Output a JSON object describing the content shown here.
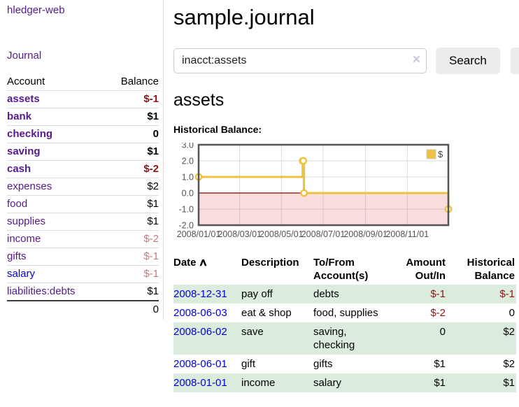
{
  "app_title": "hledger-web",
  "sidebar": {
    "journal_link": "Journal",
    "account_header": "Account",
    "balance_header": "Balance",
    "accounts": [
      {
        "name": "assets",
        "balance": "$-1",
        "depth": 0
      },
      {
        "name": "bank",
        "balance": "$1",
        "depth": 1
      },
      {
        "name": "checking",
        "balance": "0",
        "depth": 2
      },
      {
        "name": "saving",
        "balance": "$1",
        "depth": 2
      },
      {
        "name": "cash",
        "balance": "$-2",
        "depth": 1
      },
      {
        "name": "expenses",
        "balance": "$2",
        "depth": 0
      },
      {
        "name": "food",
        "balance": "$1",
        "depth": 1
      },
      {
        "name": "supplies",
        "balance": "$1",
        "depth": 1
      },
      {
        "name": "income",
        "balance": "$-2",
        "depth": 0
      },
      {
        "name": "gifts",
        "balance": "$-1",
        "depth": 1
      },
      {
        "name": "salary",
        "balance": "$-1",
        "depth": 1
      },
      {
        "name": "liabilities:debts",
        "balance": "$1",
        "depth": 0
      }
    ],
    "total": "0"
  },
  "header": {
    "title": "sample.journal"
  },
  "search": {
    "value": "inacct:assets",
    "clear_icon": "×",
    "search_button": "Search",
    "help_button": "?"
  },
  "account_page": {
    "heading": "assets",
    "chart_title": "Historical Balance:"
  },
  "chart_data": {
    "type": "line",
    "step": true,
    "title": "Historical Balance",
    "series": [
      {
        "name": "$",
        "color": "#edc240",
        "points": [
          [
            "2008-01-01",
            1
          ],
          [
            "2008-06-01",
            2
          ],
          [
            "2008-06-02",
            2
          ],
          [
            "2008-06-03",
            0
          ],
          [
            "2008-12-31",
            -1
          ]
        ]
      }
    ],
    "x_range": [
      "2008-01-01",
      "2008-12-31"
    ],
    "x_ticks": [
      "2008/01/01",
      "2008/03/01",
      "2008/05/01",
      "2008/07/01",
      "2008/09/01",
      "2008/11/01"
    ],
    "y_ticks": [
      "3.0",
      "2.0",
      "1.0",
      "0.0",
      "-1.0",
      "-2.0"
    ],
    "ylim": [
      -2,
      3
    ],
    "grid": true,
    "legend": "$",
    "legend_position": "top-right",
    "negative_region_color": "#fadddd",
    "zero_line_color": "#8b0000",
    "border_color": "#545454",
    "label_color": "#545454"
  },
  "register": {
    "headers": {
      "date": "Date",
      "sort_indicator": "∧",
      "description": "Description",
      "accounts": "To/From Account(s)",
      "amount": "Amount Out/In",
      "balance": "Historical Balance"
    },
    "rows": [
      {
        "date": "2008-12-31",
        "description": "pay off",
        "accounts": "debts",
        "amount": "$-1",
        "balance": "$-1"
      },
      {
        "date": "2008-06-03",
        "description": "eat & shop",
        "accounts": "food, supplies",
        "amount": "$-2",
        "balance": "0"
      },
      {
        "date": "2008-06-02",
        "description": "save",
        "accounts": "saving, checking",
        "amount": "0",
        "balance": "$2"
      },
      {
        "date": "2008-06-01",
        "description": "gift",
        "accounts": "gifts",
        "amount": "$1",
        "balance": "$2"
      },
      {
        "date": "2008-01-01",
        "description": "income",
        "accounts": "salary",
        "amount": "$1",
        "balance": "$1"
      }
    ]
  },
  "colors": {
    "link_purple": "#551a8b",
    "link_blue": "#0000e0",
    "negative_dark": "#8b1616",
    "negative_soft": "#c27b7b",
    "row_green": "#dcecdc",
    "chart_gold": "#edc240"
  }
}
